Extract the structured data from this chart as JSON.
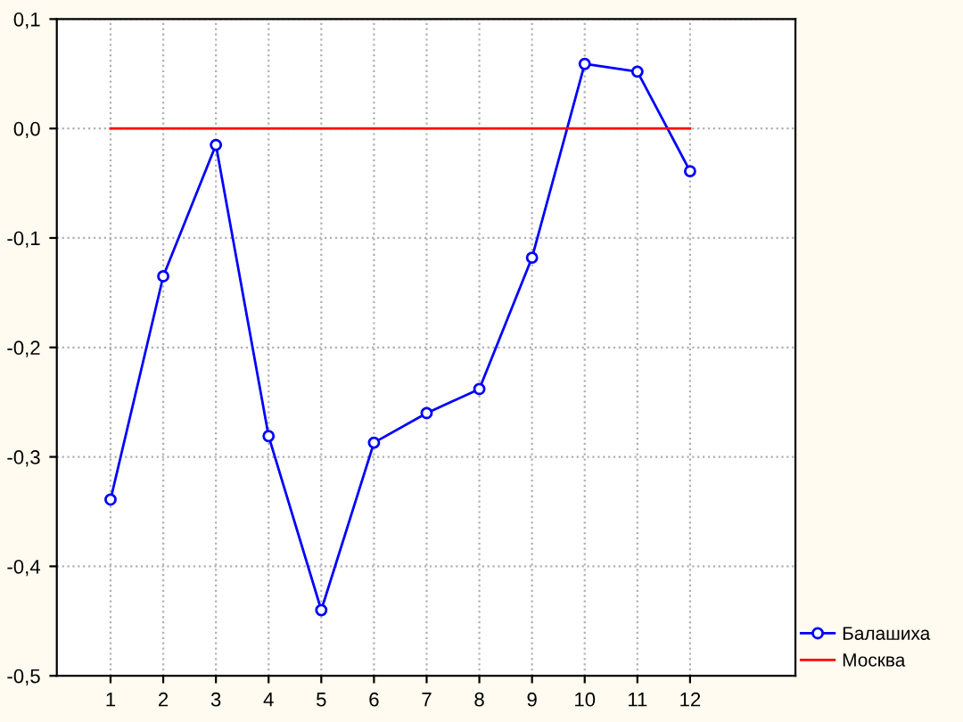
{
  "chart_data": {
    "type": "line",
    "categories": [
      "1",
      "2",
      "3",
      "4",
      "5",
      "6",
      "7",
      "8",
      "9",
      "10",
      "11",
      "12"
    ],
    "series": [
      {
        "name": "Балашиха",
        "color": "#0000ff",
        "marker": "circle",
        "values": [
          -0.339,
          -0.135,
          -0.015,
          -0.281,
          -0.44,
          -0.287,
          -0.26,
          -0.238,
          -0.118,
          0.059,
          0.052,
          -0.039
        ]
      },
      {
        "name": "Москва",
        "color": "#ff0000",
        "marker": "none",
        "values": [
          0,
          0,
          0,
          0,
          0,
          0,
          0,
          0,
          0,
          0,
          0,
          0
        ]
      }
    ],
    "ylim": [
      -0.5,
      0.1
    ],
    "yticks": [
      {
        "value": -0.5,
        "label": "-0,5"
      },
      {
        "value": -0.4,
        "label": "-0,4"
      },
      {
        "value": -0.3,
        "label": "-0,3"
      },
      {
        "value": -0.2,
        "label": "-0,2"
      },
      {
        "value": -0.1,
        "label": "-0,1"
      },
      {
        "value": 0,
        "label": "0,0"
      },
      {
        "value": 0.1,
        "label": "0,1"
      }
    ],
    "grid": true,
    "legend": "bottom right",
    "line_style": "solid"
  }
}
